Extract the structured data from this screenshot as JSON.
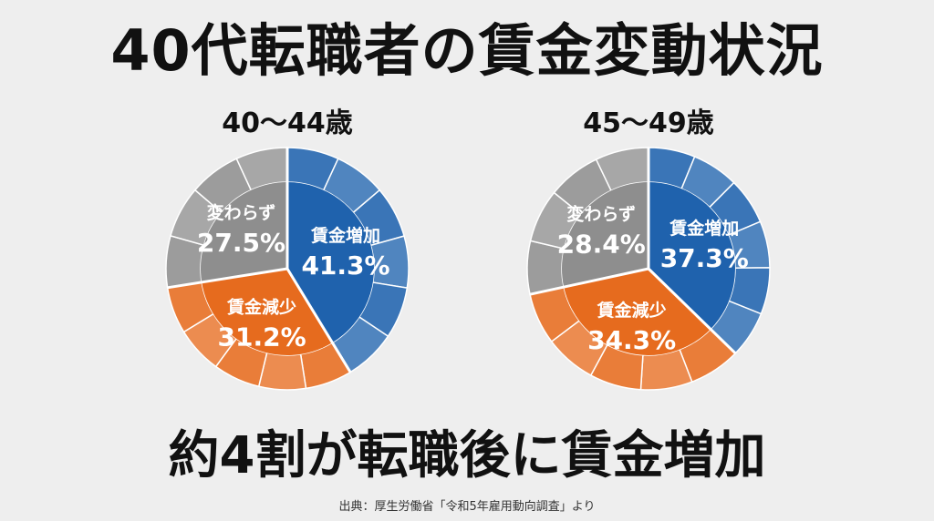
{
  "title": "40代転職者の賃金変動状況",
  "conclusion": "約4割が転職後に賃金増加",
  "source": "出典：厚生労働省「令和5年雇用動向調査」より",
  "chart_data": [
    {
      "type": "pie",
      "title": "40～44歳",
      "slices": [
        {
          "label": "賃金増加",
          "value": 41.3,
          "display": "41.3%",
          "color": "#1f62ad"
        },
        {
          "label": "賃金減少",
          "value": 31.2,
          "display": "31.2%",
          "color": "#e66b1e"
        },
        {
          "label": "変わらず",
          "value": 27.5,
          "display": "27.5%",
          "color": "#8e8e8e"
        }
      ]
    },
    {
      "type": "pie",
      "title": "45～49歳",
      "slices": [
        {
          "label": "賃金増加",
          "value": 37.3,
          "display": "37.3%",
          "color": "#1f62ad"
        },
        {
          "label": "賃金減少",
          "value": 34.3,
          "display": "34.3%",
          "color": "#e66b1e"
        },
        {
          "label": "変わらず",
          "value": 28.4,
          "display": "28.4%",
          "color": "#8e8e8e"
        }
      ]
    }
  ]
}
